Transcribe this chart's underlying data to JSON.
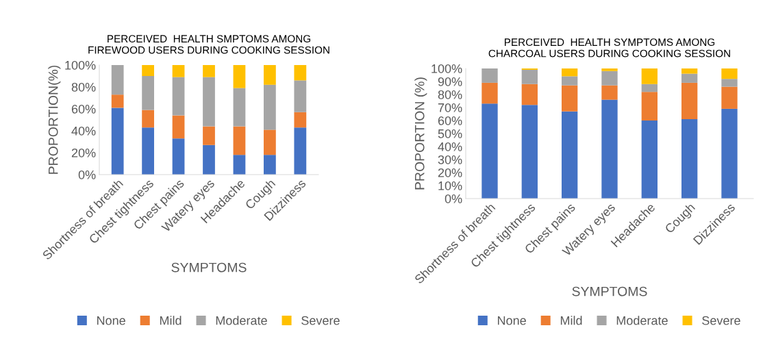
{
  "chart_data": [
    {
      "type": "bar",
      "stacked": true,
      "title": "PERCEIVED  HEALTH SMPTOMS AMONG\nFIREWOOD USERS DURING COOKING SESSION",
      "xlabel": "SYMPTOMS",
      "ylabel": "PROPORTION(%)",
      "categories": [
        "Shortness of breath",
        "Chest tightness",
        "Chest pains",
        "Watery eyes",
        "Headache",
        "Cough",
        "Dizziness"
      ],
      "series": [
        {
          "name": "None",
          "color": "#4472c4",
          "values": [
            61,
            43,
            33,
            27,
            18,
            18,
            43
          ]
        },
        {
          "name": "Mild",
          "color": "#ed7d31",
          "values": [
            12,
            16,
            21,
            17,
            26,
            23,
            14
          ]
        },
        {
          "name": "Moderate",
          "color": "#a5a5a5",
          "values": [
            27,
            31,
            35,
            45,
            35,
            41,
            29
          ]
        },
        {
          "name": "Severe",
          "color": "#ffc000",
          "values": [
            0,
            10,
            11,
            11,
            21,
            18,
            14
          ]
        }
      ],
      "ylim": [
        0,
        100
      ],
      "yticks": [
        {
          "value": 0,
          "label": "0%"
        },
        {
          "value": 20,
          "label": "20%"
        },
        {
          "value": 40,
          "label": "40%"
        },
        {
          "value": 60,
          "label": "60%"
        },
        {
          "value": 80,
          "label": "80%"
        },
        {
          "value": 100,
          "label": "100%"
        }
      ],
      "legend": "bottom"
    },
    {
      "type": "bar",
      "stacked": true,
      "title": "PERCEIVED  HEALTH SYMPTOMS AMONG\nCHARCOAL USERS DURING COOKING SESSION",
      "xlabel": "SYMPTOMS",
      "ylabel": "PROPORTION (%)",
      "categories": [
        "Shortness of breath",
        "Chest tightness",
        "Chest pains",
        "Watery eyes",
        "Headache",
        "Cough",
        "Dizziness"
      ],
      "series": [
        {
          "name": "None",
          "color": "#4472c4",
          "values": [
            73,
            72,
            67,
            76,
            60,
            61,
            69
          ]
        },
        {
          "name": "Mild",
          "color": "#ed7d31",
          "values": [
            16,
            16,
            20,
            11,
            22,
            28,
            17
          ]
        },
        {
          "name": "Moderate",
          "color": "#a5a5a5",
          "values": [
            11,
            11,
            7,
            11,
            6,
            7,
            6
          ]
        },
        {
          "name": "Severe",
          "color": "#ffc000",
          "values": [
            0,
            1,
            6,
            2,
            12,
            4,
            8
          ]
        }
      ],
      "ylim": [
        0,
        100
      ],
      "yticks": [
        {
          "value": 0,
          "label": "0%"
        },
        {
          "value": 10,
          "label": "10%"
        },
        {
          "value": 20,
          "label": "20%"
        },
        {
          "value": 30,
          "label": "30%"
        },
        {
          "value": 40,
          "label": "40%"
        },
        {
          "value": 50,
          "label": "50%"
        },
        {
          "value": 60,
          "label": "60%"
        },
        {
          "value": 70,
          "label": "70%"
        },
        {
          "value": 80,
          "label": "80%"
        },
        {
          "value": 90,
          "label": "90%"
        },
        {
          "value": 100,
          "label": "100%"
        }
      ],
      "legend": "bottom"
    }
  ]
}
